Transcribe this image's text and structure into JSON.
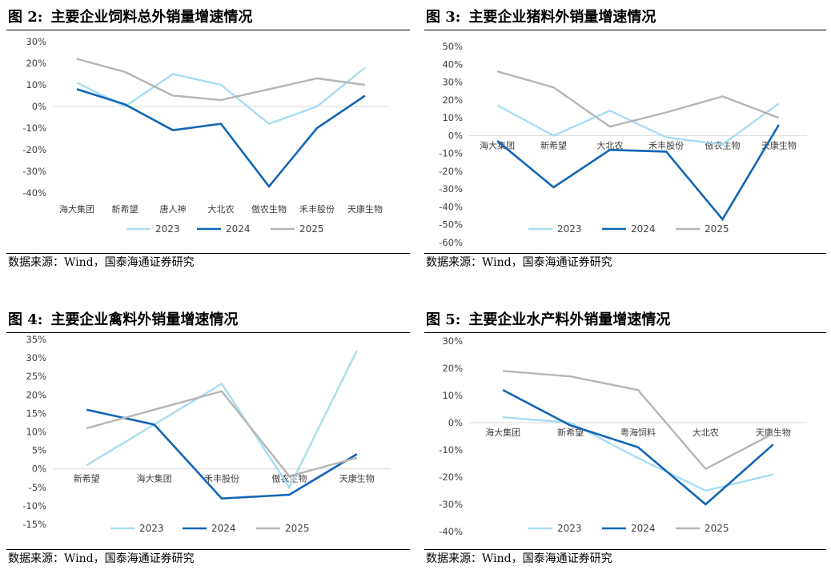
{
  "colors": {
    "2023": "#a9dcf3",
    "2024": "#1266b4",
    "2025": "#b5b5b5",
    "axis": "#d9d9d9",
    "text": "#404040"
  },
  "source_text": "数据来源：Wind，国泰海通证券研究",
  "chart_data": [
    {
      "type": "line",
      "figure_label": "图 2:",
      "title": "主要企业饲料总外销量增速情况",
      "categories": [
        "海大集团",
        "新希望",
        "唐人神",
        "大北农",
        "傲农生物",
        "禾丰股份",
        "天康生物"
      ],
      "y_ticks": [
        "30%",
        "20%",
        "10%",
        "0%",
        "-10%",
        "-20%",
        "-30%",
        "-40%"
      ],
      "ylim": [
        -40,
        30
      ],
      "y_unit": "%",
      "x_labels_at": "bottom",
      "legend": "bottom",
      "grid": false,
      "series": [
        {
          "name": "2023",
          "values": [
            11,
            0,
            15,
            10,
            -8,
            0,
            18
          ]
        },
        {
          "name": "2024",
          "values": [
            8,
            1,
            -11,
            -8,
            -37,
            -10,
            5
          ]
        },
        {
          "name": "2025",
          "values": [
            22,
            16,
            5,
            3,
            8,
            13,
            10
          ]
        }
      ]
    },
    {
      "type": "line",
      "figure_label": "图 3:",
      "title": "主要企业猪料外销量增速情况",
      "categories": [
        "海大集团",
        "新希望",
        "大北农",
        "禾丰股份",
        "傲农生物",
        "天康生物"
      ],
      "y_ticks": [
        "50%",
        "40%",
        "30%",
        "20%",
        "10%",
        "0%",
        "-10%",
        "-20%",
        "-30%",
        "-40%",
        "-50%",
        "-60%"
      ],
      "ylim": [
        -60,
        50
      ],
      "y_unit": "%",
      "x_labels_at": "zero",
      "legend": "bottom",
      "grid": false,
      "series": [
        {
          "name": "2023",
          "values": [
            17,
            0,
            14,
            -1,
            -5,
            18
          ]
        },
        {
          "name": "2024",
          "values": [
            -3,
            -29,
            -8,
            -9,
            -47,
            6
          ]
        },
        {
          "name": "2025",
          "values": [
            36,
            27,
            5,
            13,
            22,
            10
          ]
        }
      ]
    },
    {
      "type": "line",
      "figure_label": "图 4:",
      "title": "主要企业禽料外销量增速情况",
      "categories": [
        "新希望",
        "海大集团",
        "禾丰股份",
        "傲农生物",
        "天康生物"
      ],
      "y_ticks": [
        "35%",
        "30%",
        "25%",
        "20%",
        "15%",
        "10%",
        "5%",
        "0%",
        "-5%",
        "-10%",
        "-15%"
      ],
      "ylim": [
        -15,
        35
      ],
      "y_unit": "%",
      "x_labels_at": "zero",
      "legend": "bottom",
      "grid": false,
      "series": [
        {
          "name": "2023",
          "values": [
            1,
            12,
            23,
            -5,
            32
          ]
        },
        {
          "name": "2024",
          "values": [
            16,
            12,
            -8,
            -7,
            4
          ]
        },
        {
          "name": "2025",
          "values": [
            11,
            16,
            21,
            -2,
            3
          ]
        }
      ]
    },
    {
      "type": "line",
      "figure_label": "图 5:",
      "title": "主要企业水产料外销量增速情况",
      "categories": [
        "海大集团",
        "新希望",
        "粤海饲料",
        "大北农",
        "天康生物"
      ],
      "y_ticks": [
        "30%",
        "20%",
        "10%",
        "0%",
        "-10%",
        "-20%",
        "-30%",
        "-40%"
      ],
      "ylim": [
        -40,
        30
      ],
      "y_unit": "%",
      "x_labels_at": "zero",
      "legend": "bottom",
      "grid": false,
      "series": [
        {
          "name": "2023",
          "values": [
            2,
            0,
            -13,
            -25,
            -19
          ]
        },
        {
          "name": "2024",
          "values": [
            12,
            -1,
            -9,
            -30,
            -8
          ]
        },
        {
          "name": "2025",
          "values": [
            19,
            17,
            12,
            -17,
            -4
          ]
        }
      ]
    }
  ]
}
